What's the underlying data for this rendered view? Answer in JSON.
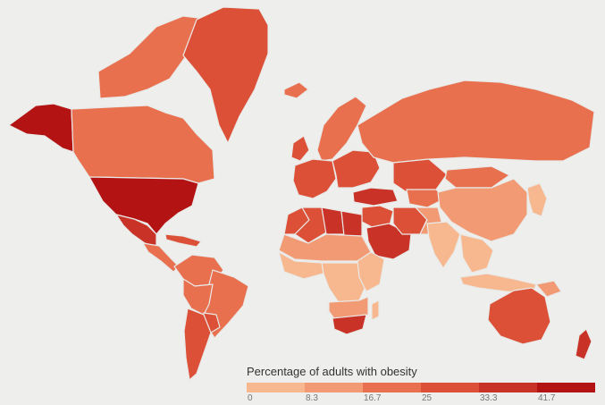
{
  "legend": {
    "title": "Percentage of adults with obesity",
    "ticks": [
      "0",
      "8.3",
      "16.7",
      "25",
      "33.3",
      "41.7"
    ],
    "colors": [
      "#f7b88f",
      "#f29a74",
      "#e8704f",
      "#dc5038",
      "#c93226",
      "#b31313"
    ]
  },
  "map": {
    "background": "#eeeeec",
    "border_color": "#e9e9e7",
    "no_data_color": "#c9c9c9",
    "regions": [
      {
        "name": "alaska",
        "bin": 5
      },
      {
        "name": "canada",
        "bin": 2
      },
      {
        "name": "canadian-arctic-islands",
        "bin": 2
      },
      {
        "name": "greenland",
        "bin": 3
      },
      {
        "name": "iceland",
        "bin": 2
      },
      {
        "name": "united-states",
        "bin": 5
      },
      {
        "name": "mexico",
        "bin": 4
      },
      {
        "name": "central-america",
        "bin": 2
      },
      {
        "name": "caribbean",
        "bin": 3
      },
      {
        "name": "venezuela-colombia",
        "bin": 2
      },
      {
        "name": "brazil",
        "bin": 2
      },
      {
        "name": "peru-bolivia",
        "bin": 2
      },
      {
        "name": "paraguay",
        "bin": 3
      },
      {
        "name": "argentina-chile",
        "bin": 3
      },
      {
        "name": "uk-ireland",
        "bin": 3
      },
      {
        "name": "scandinavia",
        "bin": 2
      },
      {
        "name": "western-europe",
        "bin": 3
      },
      {
        "name": "eastern-europe",
        "bin": 3
      },
      {
        "name": "turkey",
        "bin": 4
      },
      {
        "name": "russia",
        "bin": 2
      },
      {
        "name": "kazakhstan",
        "bin": 3
      },
      {
        "name": "central-asia",
        "bin": 2
      },
      {
        "name": "mongolia",
        "bin": 2
      },
      {
        "name": "china",
        "bin": 1
      },
      {
        "name": "korea-japan",
        "bin": 0
      },
      {
        "name": "middle-east",
        "bin": 3
      },
      {
        "name": "saudi-arabia",
        "bin": 4
      },
      {
        "name": "egypt",
        "bin": 4
      },
      {
        "name": "libya",
        "bin": 4
      },
      {
        "name": "algeria",
        "bin": 3
      },
      {
        "name": "morocco",
        "bin": 3
      },
      {
        "name": "iran",
        "bin": 3
      },
      {
        "name": "pakistan-afghanistan",
        "bin": 1
      },
      {
        "name": "india",
        "bin": 0
      },
      {
        "name": "southeast-asia",
        "bin": 0
      },
      {
        "name": "indonesia",
        "bin": 0
      },
      {
        "name": "sahel",
        "bin": 1
      },
      {
        "name": "west-africa",
        "bin": 0
      },
      {
        "name": "central-africa",
        "bin": 0
      },
      {
        "name": "east-africa",
        "bin": 0
      },
      {
        "name": "southern-africa",
        "bin": 1
      },
      {
        "name": "south-africa",
        "bin": 4
      },
      {
        "name": "madagascar",
        "bin": 0
      },
      {
        "name": "australia",
        "bin": 3
      },
      {
        "name": "new-zealand",
        "bin": 4
      },
      {
        "name": "papua-new-guinea",
        "bin": 1
      }
    ]
  }
}
